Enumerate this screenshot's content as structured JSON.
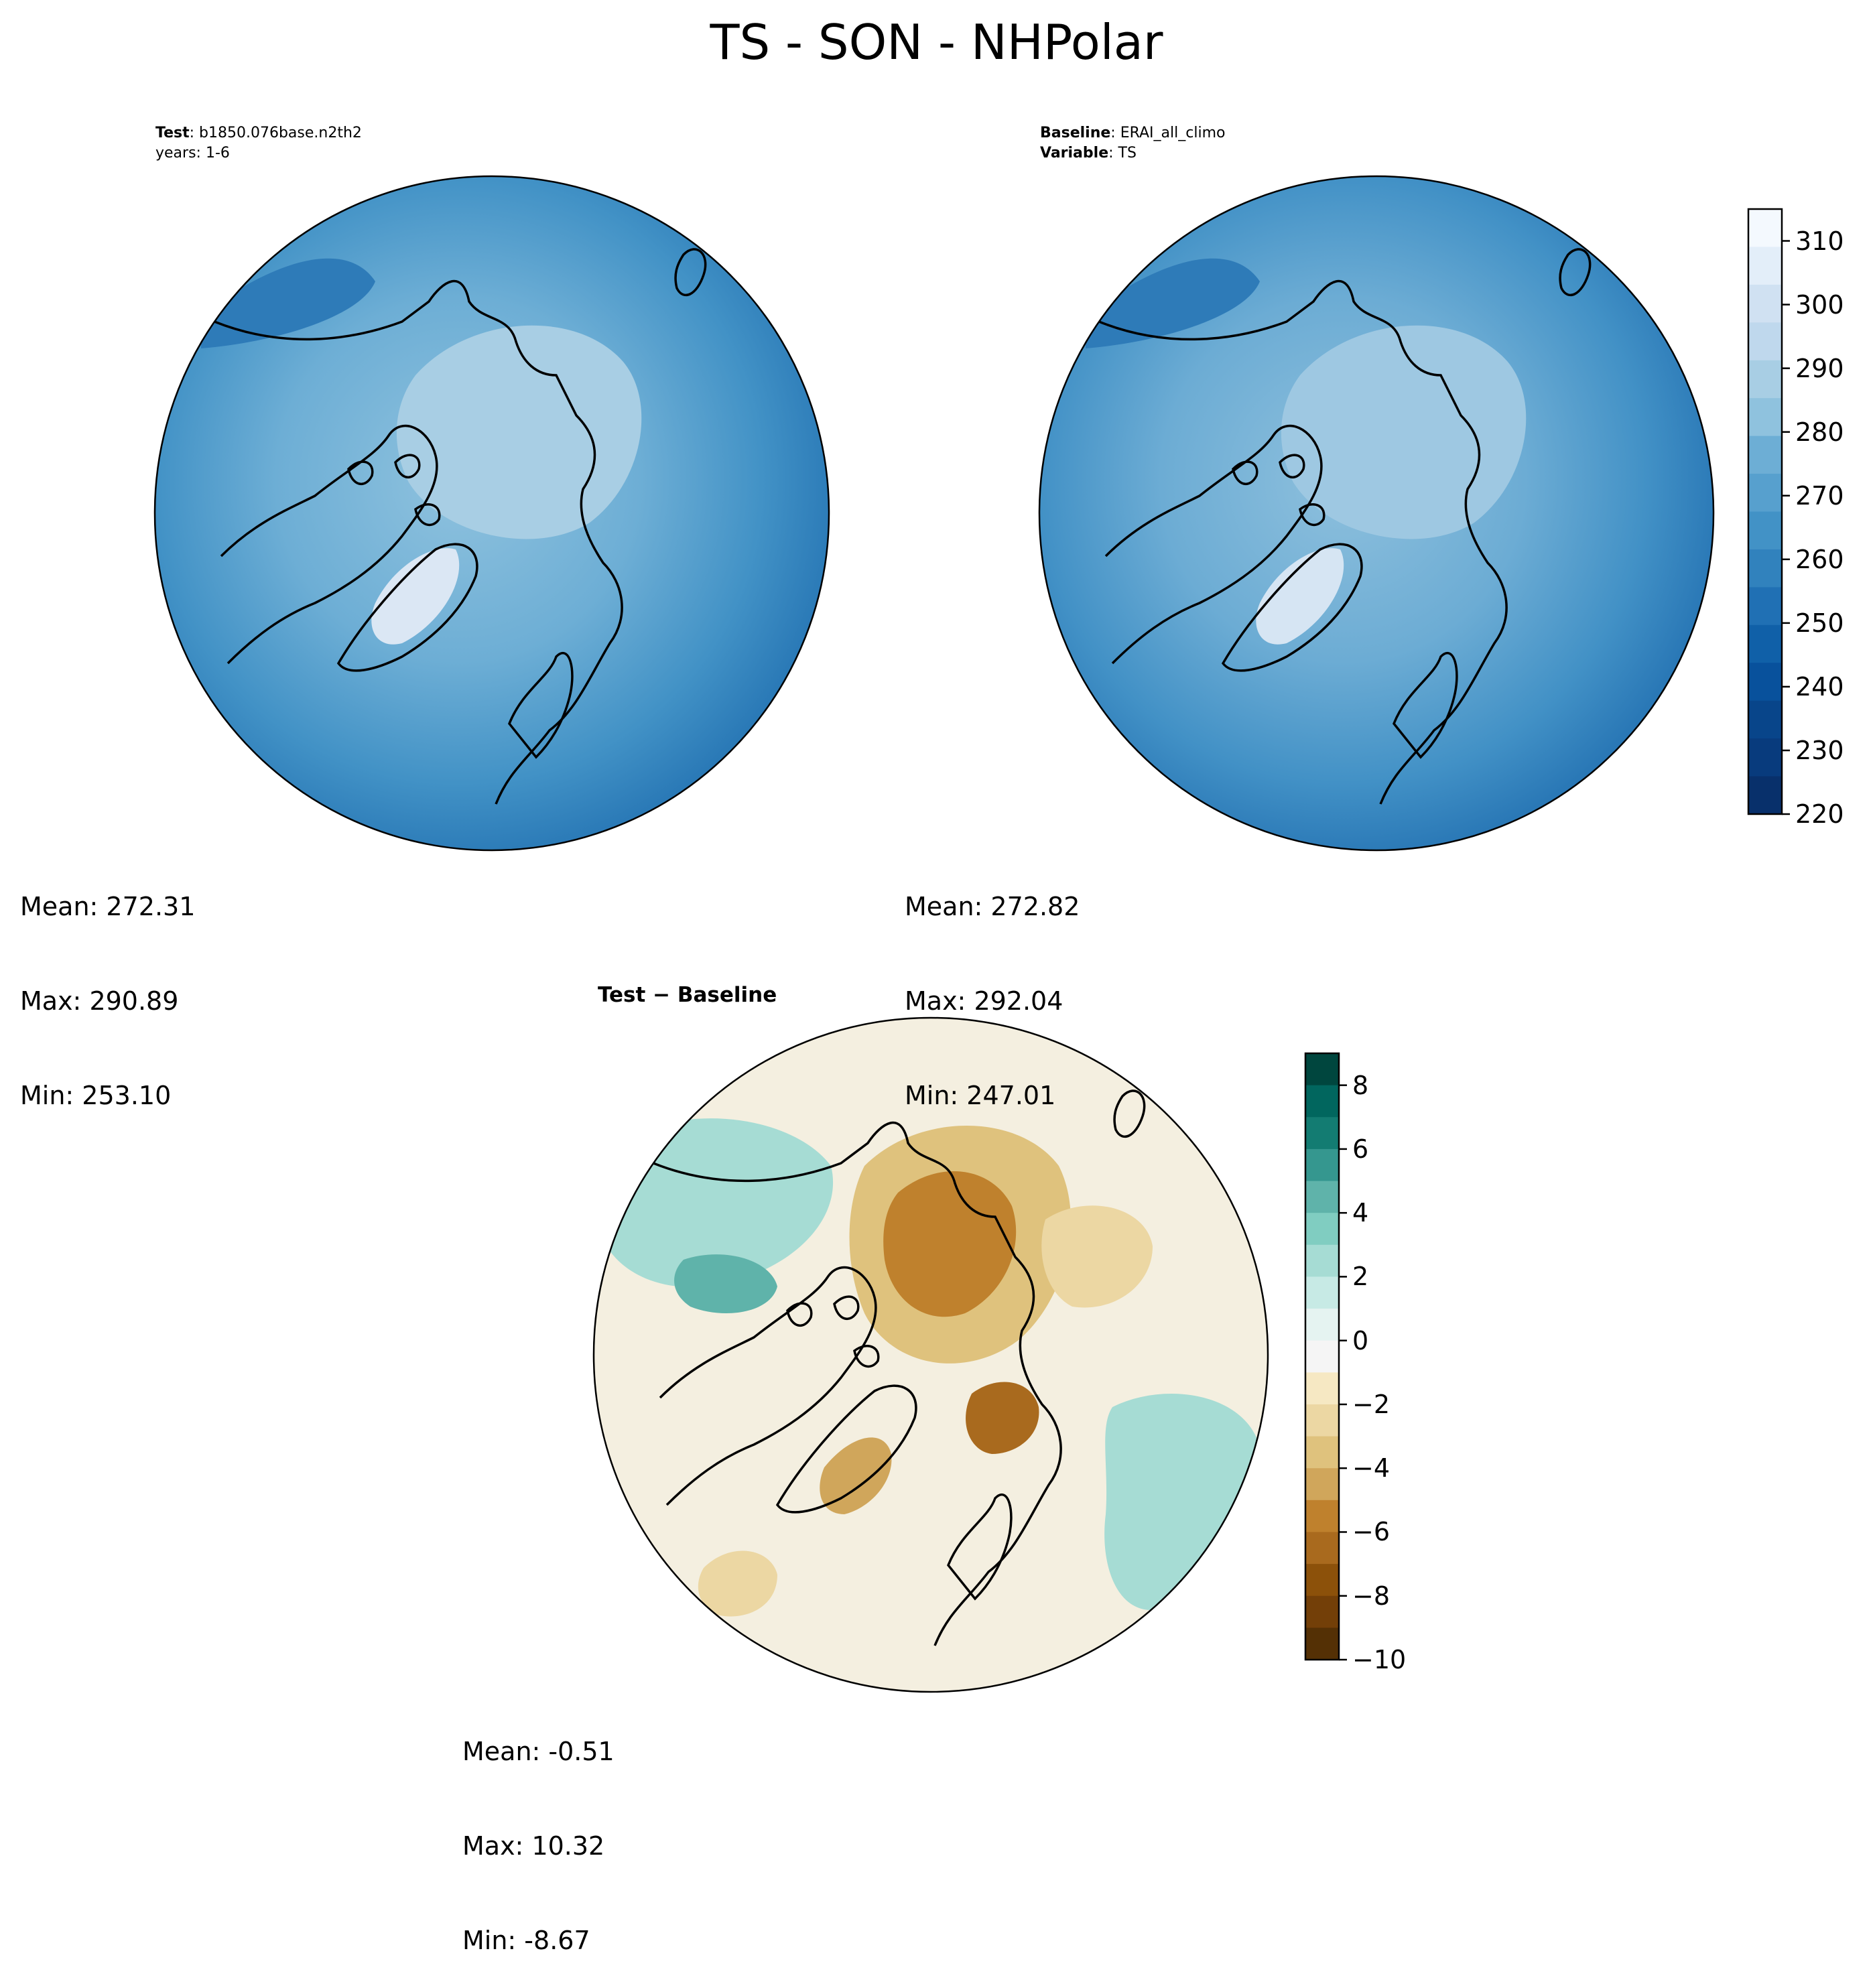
{
  "figure": {
    "title": "TS - SON - NHPolar"
  },
  "panels": {
    "test": {
      "label_key": "Test",
      "label_value": "b1850.076base.n2th2",
      "years_line": "years: 1-6",
      "mean": "Mean: 272.31",
      "max": "Max: 290.89",
      "min": "Min: 253.10"
    },
    "baseline": {
      "label_key": "Baseline",
      "label_value": "ERAI_all_climo",
      "variable_key": "Variable",
      "variable_value": "TS",
      "mean": "Mean: 272.82",
      "max": "Max: 292.04",
      "min": "Min: 247.01"
    },
    "diff": {
      "title": "Test − Baseline",
      "mean": "Mean: -0.51",
      "max": "Max: 10.32",
      "min": "Min: -8.67"
    }
  },
  "colorbars": {
    "temperature": {
      "colormap": "Blues",
      "ticks": [
        "220",
        "230",
        "240",
        "250",
        "260",
        "270",
        "280",
        "290",
        "300",
        "310"
      ],
      "range": [
        220,
        315
      ],
      "colors": [
        "#f4f9fe",
        "#e3eef9",
        "#d0e1f2",
        "#bfd8ed",
        "#a8cee4",
        "#8fc2de",
        "#6daed5",
        "#57a0ce",
        "#4292c6",
        "#3182bd",
        "#2070b4",
        "#1060a8",
        "#08519c",
        "#08458a",
        "#083b7d",
        "#08306b"
      ]
    },
    "difference": {
      "colormap": "BrBG",
      "ticks": [
        "8",
        "6",
        "4",
        "2",
        "0",
        "−2",
        "−4",
        "−6",
        "−8",
        "−10"
      ],
      "range": [
        -10,
        9
      ],
      "colors": [
        "#00463e",
        "#01665e",
        "#137c72",
        "#35978f",
        "#5fb3aa",
        "#80cdc1",
        "#a6dcd4",
        "#c7eae5",
        "#e5f3f1",
        "#f5f5f5",
        "#f6e8c3",
        "#ecd7a3",
        "#dfc27d",
        "#d0a65b",
        "#bf812d",
        "#a96a1e",
        "#8c510a",
        "#733f08",
        "#543005"
      ]
    }
  },
  "maps": {
    "projection": "North Polar Stereographic",
    "test_field": {
      "ocean": "#3f8dc4",
      "land": "#5fa5d2",
      "ice": "#a8cee4",
      "greenland": "#dbe7f4",
      "rim": "#2e7bb8"
    },
    "baseline_field": {
      "ocean": "#3f8dc4",
      "land": "#5fa5d2",
      "ice": "#9ec8e2",
      "greenland": "#d6e5f3",
      "rim": "#2e7bb8"
    },
    "diff_field": {
      "background": "#f4efe0",
      "warm": "#bf812d",
      "cool": "#80cdc1"
    }
  }
}
